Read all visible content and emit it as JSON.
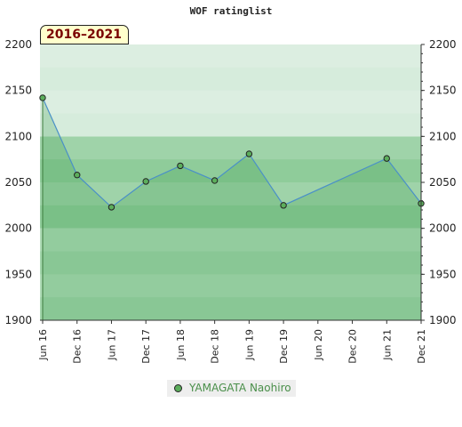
{
  "chart_data": {
    "type": "line",
    "title": "WOF ratinglist",
    "period_label": "2016–2021",
    "x": [
      "Jun 16",
      "Dec 16",
      "Jun 17",
      "Dec 17",
      "Jun 18",
      "Dec 18",
      "Jun 19",
      "Dec 19",
      "Jun 20",
      "Dec 20",
      "Jun 21",
      "Dec 21"
    ],
    "series": [
      {
        "name": "YAMAGATA Naohiro",
        "color": "#5cae5c",
        "points": [
          {
            "x": "Jun 16",
            "y": 2142
          },
          {
            "x": "Dec 16",
            "y": 2058
          },
          {
            "x": "Jun 17",
            "y": 2023
          },
          {
            "x": "Dec 17",
            "y": 2051
          },
          {
            "x": "Jun 18",
            "y": 2068
          },
          {
            "x": "Dec 18",
            "y": 2052
          },
          {
            "x": "Jun 19",
            "y": 2081
          },
          {
            "x": "Dec 19",
            "y": 2025
          },
          {
            "x": "Jun 21",
            "y": 2076
          },
          {
            "x": "Dec 21",
            "y": 2027
          }
        ]
      }
    ],
    "ylim": [
      1900,
      2200
    ],
    "yticks": [
      1900,
      1950,
      2000,
      2050,
      2100,
      2150,
      2200
    ],
    "bands": [
      {
        "from": 1900,
        "to": 2000,
        "color": "#a3d6ac"
      },
      {
        "from": 2000,
        "to": 2100,
        "color": "#8fcc9a"
      },
      {
        "from": 2100,
        "to": 2200,
        "color": "#d6ecdc"
      }
    ],
    "legend_position": "bottom-center"
  }
}
